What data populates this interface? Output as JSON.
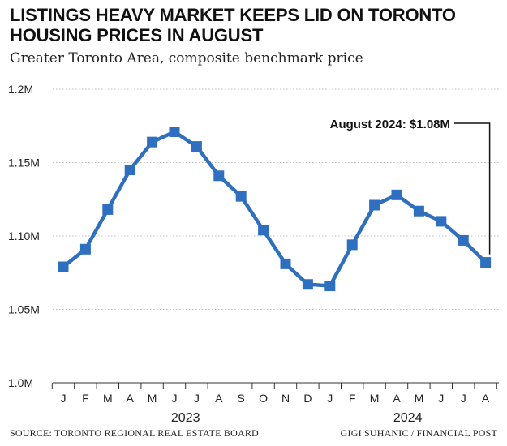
{
  "header": {
    "title": "LISTINGS HEAVY MARKET KEEPS LID ON TORONTO HOUSING PRICES IN AUGUST",
    "subtitle": "Greater Toronto Area, composite benchmark price"
  },
  "footer": {
    "source": "SOURCE: TORONTO REGIONAL REAL ESTATE BOARD",
    "credit": "GIGI SUHANIC / FINANCIAL POST"
  },
  "colors": {
    "line": "#2f6fbf",
    "grid": "#bdbdbd",
    "text": "#222222"
  },
  "chart_data": {
    "type": "line",
    "title": "LISTINGS HEAVY MARKET KEEPS LID ON TORONTO HOUSING PRICES IN AUGUST",
    "subtitle": "Greater Toronto Area, composite benchmark price",
    "categories": [
      "J",
      "F",
      "M",
      "A",
      "M",
      "J",
      "J",
      "A",
      "S",
      "O",
      "N",
      "D",
      "J",
      "F",
      "M",
      "A",
      "M",
      "J",
      "J",
      "A"
    ],
    "year_groups": [
      {
        "label": "2023",
        "start": 0,
        "end": 11
      },
      {
        "label": "2024",
        "start": 12,
        "end": 19
      }
    ],
    "series": [
      {
        "name": "Composite benchmark price",
        "unit": "millions CAD",
        "values": [
          1.079,
          1.091,
          1.118,
          1.145,
          1.164,
          1.171,
          1.161,
          1.141,
          1.127,
          1.104,
          1.081,
          1.067,
          1.066,
          1.094,
          1.121,
          1.128,
          1.117,
          1.11,
          1.097,
          1.082
        ]
      }
    ],
    "yticks": [
      {
        "value": 1.0,
        "label": "1.0M"
      },
      {
        "value": 1.05,
        "label": "1.05M"
      },
      {
        "value": 1.1,
        "label": "1.10M"
      },
      {
        "value": 1.15,
        "label": "1.15M"
      },
      {
        "value": 1.2,
        "label": "1.2M"
      }
    ],
    "ylim": [
      1.0,
      1.2
    ],
    "grid": true,
    "annotation": {
      "text": "August 2024: $1.08M",
      "point_index": 19
    }
  }
}
